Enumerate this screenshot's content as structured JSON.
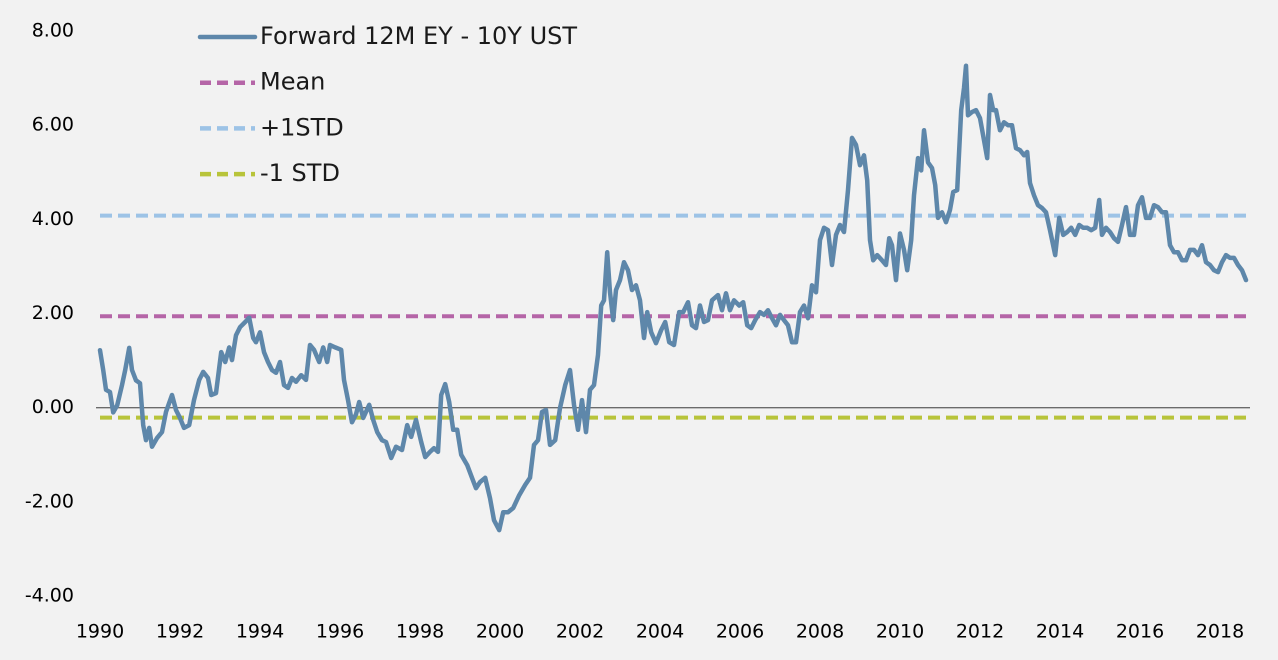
{
  "chart_data": {
    "type": "line",
    "xlim": [
      1990,
      2018.75
    ],
    "xticks": [
      1990,
      1992,
      1994,
      1996,
      1998,
      2000,
      2002,
      2004,
      2006,
      2008,
      2010,
      2012,
      2014,
      2016,
      2018
    ],
    "ylim": [
      -4,
      8
    ],
    "yticks": [
      {
        "value": -4,
        "label": "-4.00"
      },
      {
        "value": -2,
        "label": "-2.00"
      },
      {
        "value": 0,
        "label": "0.00"
      },
      {
        "value": 2,
        "label": "2.00"
      },
      {
        "value": 4,
        "label": "4.00"
      },
      {
        "value": 6,
        "label": "6.00"
      },
      {
        "value": 8,
        "label": "8.00"
      }
    ],
    "grid": false,
    "legend": "top-left",
    "series": [
      {
        "name": "Forward 12M EY - 10Y UST",
        "color": "#5e87aa",
        "style": "solid",
        "x": [
          1990.0,
          1990.08,
          1990.15,
          1990.25,
          1990.33,
          1990.43,
          1990.55,
          1990.63,
          1990.73,
          1990.8,
          1990.9,
          1991.0,
          1991.08,
          1991.15,
          1991.23,
          1991.3,
          1991.43,
          1991.55,
          1991.65,
          1991.8,
          1991.9,
          1992.0,
          1992.1,
          1992.23,
          1992.35,
          1992.48,
          1992.58,
          1992.7,
          1992.78,
          1992.9,
          1993.03,
          1993.13,
          1993.23,
          1993.3,
          1993.4,
          1993.5,
          1993.63,
          1993.73,
          1993.83,
          1993.9,
          1994.0,
          1994.1,
          1994.2,
          1994.3,
          1994.4,
          1994.5,
          1994.6,
          1994.7,
          1994.8,
          1994.9,
          1995.03,
          1995.15,
          1995.25,
          1995.35,
          1995.48,
          1995.58,
          1995.68,
          1995.75,
          1995.88,
          1996.03,
          1996.1,
          1996.2,
          1996.3,
          1996.4,
          1996.48,
          1996.58,
          1996.73,
          1996.83,
          1996.93,
          1997.05,
          1997.15,
          1997.28,
          1997.4,
          1997.55,
          1997.68,
          1997.78,
          1997.9,
          1998.03,
          1998.13,
          1998.25,
          1998.35,
          1998.45,
          1998.53,
          1998.63,
          1998.73,
          1998.83,
          1998.93,
          1999.03,
          1999.18,
          1999.3,
          1999.4,
          1999.5,
          1999.63,
          1999.75,
          1999.85,
          1999.98,
          2000.08,
          2000.2,
          2000.33,
          2000.48,
          2000.63,
          2000.75,
          2000.85,
          2000.95,
          2001.05,
          2001.15,
          2001.25,
          2001.38,
          2001.5,
          2001.63,
          2001.75,
          2001.85,
          2001.95,
          2002.05,
          2002.15,
          2002.25,
          2002.35,
          2002.45,
          2002.53,
          2002.6,
          2002.68,
          2002.75,
          2002.83,
          2002.9,
          2003.0,
          2003.1,
          2003.2,
          2003.3,
          2003.4,
          2003.5,
          2003.6,
          2003.68,
          2003.78,
          2003.9,
          2004.03,
          2004.13,
          2004.23,
          2004.35,
          2004.48,
          2004.58,
          2004.7,
          2004.8,
          2004.9,
          2005.0,
          2005.1,
          2005.2,
          2005.3,
          2005.45,
          2005.55,
          2005.65,
          2005.75,
          2005.85,
          2005.98,
          2006.08,
          2006.18,
          2006.28,
          2006.38,
          2006.5,
          2006.6,
          2006.7,
          2006.8,
          2006.9,
          2007.0,
          2007.1,
          2007.2,
          2007.3,
          2007.4,
          2007.5,
          2007.6,
          2007.7,
          2007.8,
          2007.9,
          2008.0,
          2008.1,
          2008.2,
          2008.3,
          2008.4,
          2008.5,
          2008.6,
          2008.7,
          2008.8,
          2008.9,
          2009.0,
          2009.1,
          2009.18,
          2009.25,
          2009.33,
          2009.43,
          2009.55,
          2009.65,
          2009.73,
          2009.8,
          2009.9,
          2010.0,
          2010.1,
          2010.18,
          2010.28,
          2010.35,
          2010.45,
          2010.53,
          2010.6,
          2010.7,
          2010.8,
          2010.88,
          2010.95,
          2011.05,
          2011.15,
          2011.25,
          2011.33,
          2011.43,
          2011.53,
          2011.6,
          2011.65,
          2011.7,
          2011.8,
          2011.9,
          2012.0,
          2012.1,
          2012.18,
          2012.25,
          2012.33,
          2012.4,
          2012.5,
          2012.6,
          2012.7,
          2012.8,
          2012.9,
          2013.0,
          2013.1,
          2013.18,
          2013.25,
          2013.35,
          2013.45,
          2013.55,
          2013.65,
          2013.75,
          2013.88,
          2013.98,
          2014.08,
          2014.18,
          2014.28,
          2014.38,
          2014.48,
          2014.58,
          2014.68,
          2014.78,
          2014.88,
          2014.98,
          2015.05,
          2015.15,
          2015.25,
          2015.35,
          2015.45,
          2015.55,
          2015.65,
          2015.75,
          2015.85,
          2015.95,
          2016.05,
          2016.15,
          2016.25,
          2016.35,
          2016.45,
          2016.55,
          2016.65,
          2016.75,
          2016.85,
          2016.95,
          2017.05,
          2017.15,
          2017.25,
          2017.35,
          2017.45,
          2017.55,
          2017.65,
          2017.75,
          2017.85,
          2017.95,
          2018.05,
          2018.15,
          2018.25,
          2018.35,
          2018.45,
          2018.55,
          2018.65
        ],
        "values": [
          1.22,
          0.8,
          0.38,
          0.33,
          -0.1,
          0.05,
          0.48,
          0.8,
          1.27,
          0.8,
          0.58,
          0.52,
          -0.37,
          -0.69,
          -0.43,
          -0.83,
          -0.64,
          -0.52,
          -0.09,
          0.27,
          -0.05,
          -0.22,
          -0.43,
          -0.37,
          0.16,
          0.59,
          0.76,
          0.63,
          0.27,
          0.31,
          1.18,
          0.97,
          1.28,
          1.01,
          1.54,
          1.71,
          1.82,
          1.91,
          1.48,
          1.39,
          1.6,
          1.18,
          0.97,
          0.8,
          0.74,
          0.97,
          0.48,
          0.42,
          0.63,
          0.55,
          0.69,
          0.59,
          1.33,
          1.23,
          0.97,
          1.28,
          0.97,
          1.33,
          1.28,
          1.23,
          0.59,
          0.16,
          -0.31,
          -0.14,
          0.12,
          -0.22,
          0.06,
          -0.26,
          -0.52,
          -0.69,
          -0.73,
          -1.07,
          -0.83,
          -0.9,
          -0.37,
          -0.62,
          -0.26,
          -0.73,
          -1.05,
          -0.94,
          -0.86,
          -0.94,
          0.27,
          0.5,
          0.12,
          -0.47,
          -0.47,
          -1.0,
          -1.22,
          -1.49,
          -1.71,
          -1.58,
          -1.49,
          -1.92,
          -2.39,
          -2.6,
          -2.22,
          -2.22,
          -2.13,
          -1.86,
          -1.64,
          -1.49,
          -0.79,
          -0.69,
          -0.09,
          -0.05,
          -0.79,
          -0.69,
          -0.01,
          0.48,
          0.8,
          0.06,
          -0.47,
          0.16,
          -0.52,
          0.38,
          0.48,
          1.12,
          2.17,
          2.28,
          3.3,
          2.45,
          1.86,
          2.5,
          2.71,
          3.09,
          2.92,
          2.5,
          2.6,
          2.28,
          1.48,
          2.03,
          1.6,
          1.37,
          1.65,
          1.82,
          1.39,
          1.33,
          2.03,
          2.03,
          2.24,
          1.75,
          1.69,
          2.17,
          1.82,
          1.86,
          2.28,
          2.39,
          2.07,
          2.43,
          2.07,
          2.28,
          2.17,
          2.24,
          1.75,
          1.69,
          1.86,
          2.03,
          1.97,
          2.07,
          1.9,
          1.75,
          1.97,
          1.86,
          1.75,
          1.39,
          1.39,
          2.03,
          2.17,
          1.9,
          2.6,
          2.45,
          3.56,
          3.82,
          3.77,
          3.03,
          3.67,
          3.88,
          3.73,
          4.62,
          5.73,
          5.58,
          5.15,
          5.36,
          4.83,
          3.56,
          3.13,
          3.24,
          3.13,
          3.03,
          3.6,
          3.45,
          2.71,
          3.7,
          3.35,
          2.92,
          3.56,
          4.51,
          5.3,
          5.04,
          5.89,
          5.21,
          5.09,
          4.73,
          4.03,
          4.15,
          3.94,
          4.2,
          4.58,
          4.62,
          6.32,
          6.79,
          7.26,
          6.21,
          6.28,
          6.32,
          6.15,
          5.68,
          5.3,
          6.64,
          6.32,
          6.32,
          5.89,
          6.06,
          6.0,
          6.0,
          5.51,
          5.47,
          5.36,
          5.43,
          4.77,
          4.51,
          4.3,
          4.24,
          4.15,
          3.77,
          3.24,
          4.03,
          3.67,
          3.73,
          3.82,
          3.67,
          3.88,
          3.82,
          3.82,
          3.77,
          3.82,
          4.41,
          3.67,
          3.82,
          3.73,
          3.6,
          3.52,
          3.88,
          4.26,
          3.67,
          3.67,
          4.3,
          4.47,
          4.03,
          4.03,
          4.3,
          4.26,
          4.15,
          4.15,
          3.45,
          3.3,
          3.3,
          3.13,
          3.13,
          3.35,
          3.35,
          3.24,
          3.45,
          3.09,
          3.03,
          2.92,
          2.88,
          3.09,
          3.24,
          3.18,
          3.18,
          3.03,
          2.92,
          2.71
        ]
      },
      {
        "name": "Mean",
        "color": "#b565a7",
        "style": "dashed",
        "x": [
          1990,
          2018.75
        ],
        "values": [
          1.94,
          1.94
        ]
      },
      {
        "name": "+1STD",
        "color": "#9dc3e6",
        "style": "dashed",
        "x": [
          1990,
          2018.75
        ],
        "values": [
          4.08,
          4.08
        ]
      },
      {
        "name": "-1 STD",
        "color": "#b8c43a",
        "style": "dashed",
        "x": [
          1990,
          2018.75
        ],
        "values": [
          -0.21,
          -0.21
        ]
      }
    ]
  }
}
